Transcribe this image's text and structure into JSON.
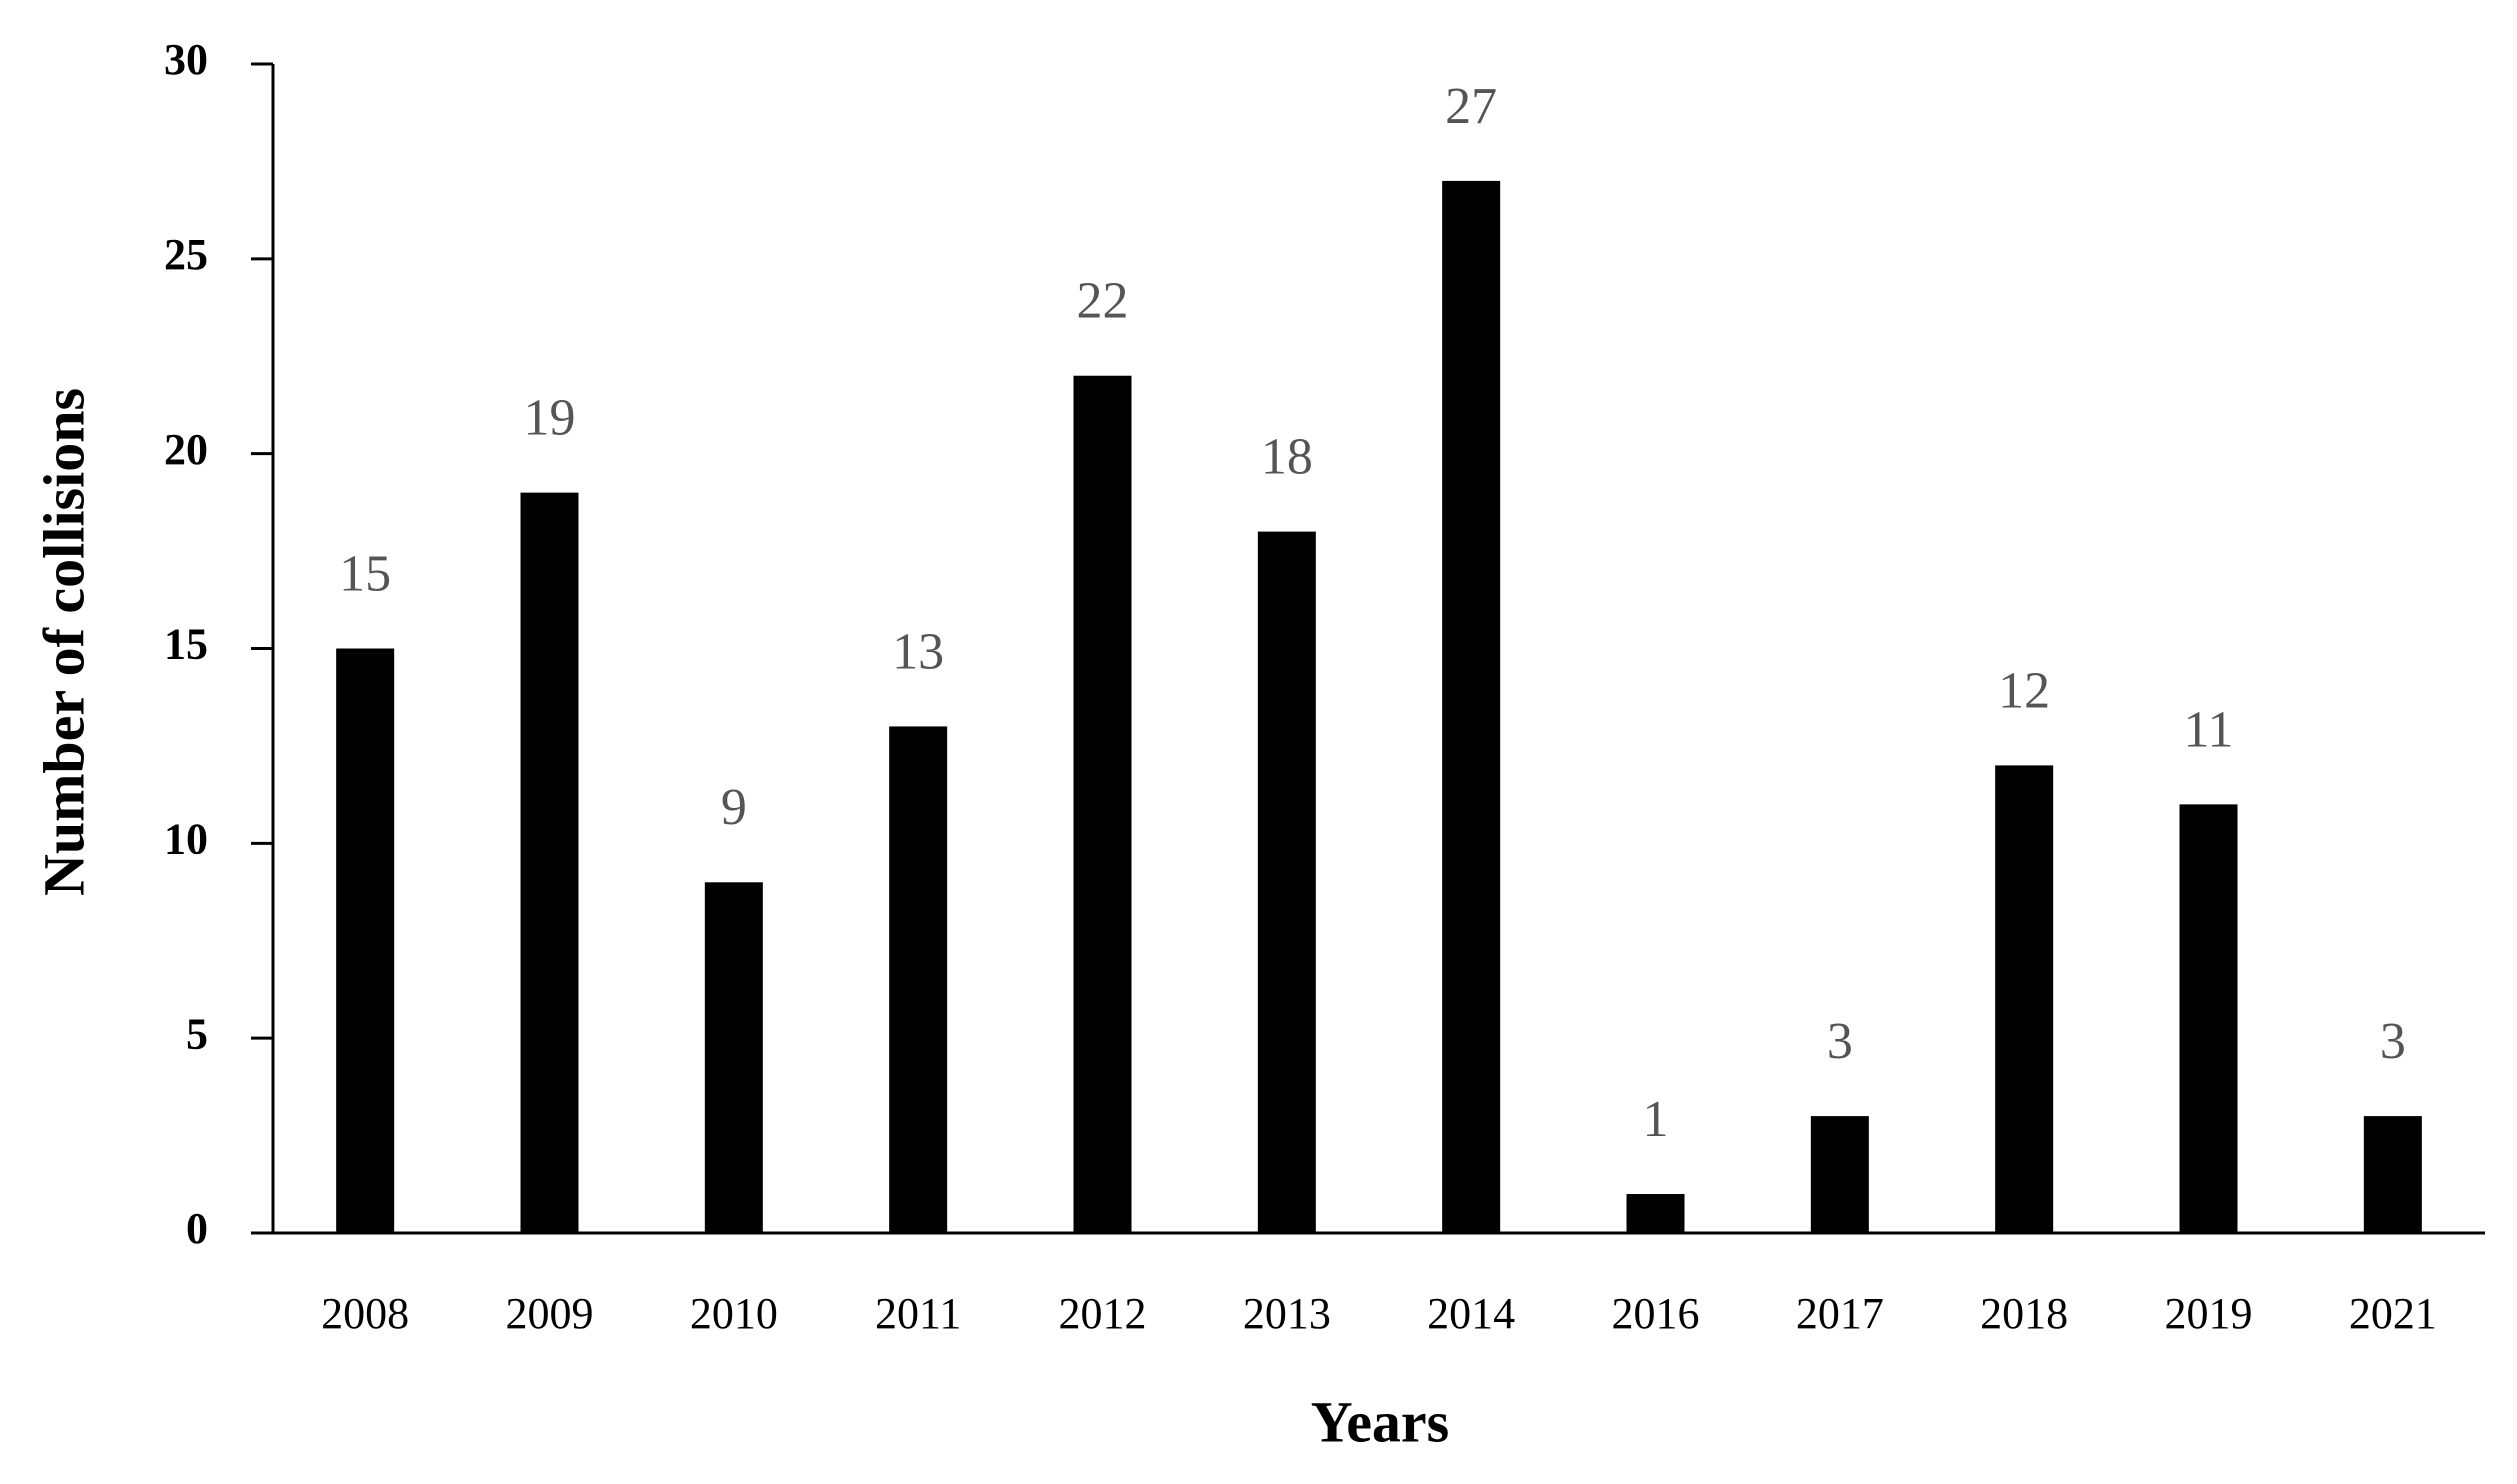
{
  "chart_data": {
    "type": "bar",
    "x_label": "Years",
    "y_label": "Number of collisions",
    "categories": [
      "2008",
      "2009",
      "2010",
      "2011",
      "2012",
      "2013",
      "2014",
      "2016",
      "2017",
      "2018",
      "2019",
      "2021"
    ],
    "values": [
      15,
      19,
      9,
      13,
      22,
      18,
      27,
      1,
      3,
      12,
      11,
      3
    ],
    "color": "#000000",
    "ylim": [
      0,
      30
    ],
    "yticks": [
      0,
      5,
      10,
      15,
      20,
      25,
      30
    ],
    "grid": false
  }
}
